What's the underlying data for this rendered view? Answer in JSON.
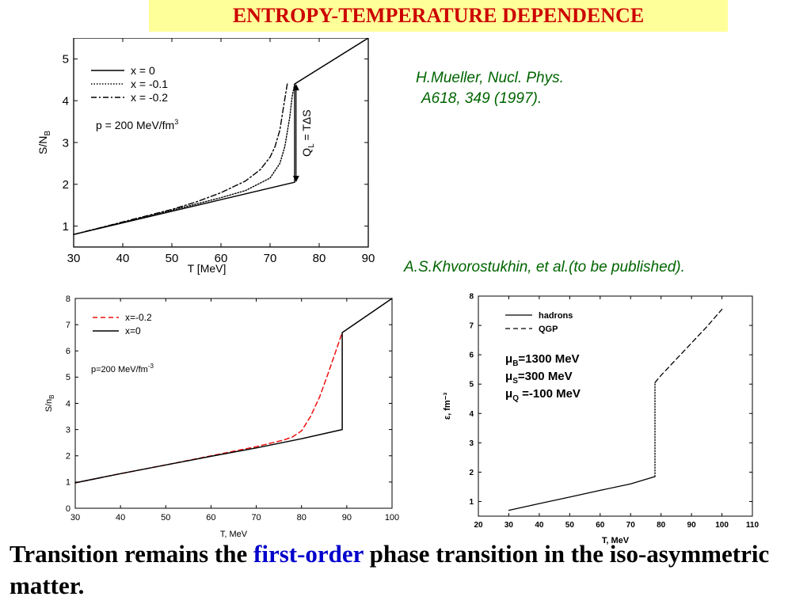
{
  "title": "ENTROPY-TEMPERATURE DEPENDENCE",
  "references": {
    "mueller_line1": "H.Mueller, Nucl. Phys.",
    "mueller_line2": "A618, 349 (1997).",
    "khvorostukhin": "A.S.Khvorostukhin, et al.(to be published)."
  },
  "conclusion": {
    "part1": "Transition remains the ",
    "highlight": "first-order",
    "part2": " phase transition in the iso-asymmetric matter."
  },
  "colors": {
    "title_bg": "#ffff99",
    "title_text": "#cc0000",
    "reference": "#006400",
    "highlight": "#0000cc",
    "red_series": "#ee1111"
  },
  "chart_data": [
    {
      "id": "mueller",
      "type": "line",
      "xlabel": "T  [MeV]",
      "ylabel": "S/N_B",
      "xlim": [
        30,
        90
      ],
      "ylim": [
        0.5,
        5.5
      ],
      "xticks": [
        30,
        40,
        50,
        60,
        70,
        80,
        90
      ],
      "yticks": [
        1,
        2,
        3,
        4,
        5
      ],
      "legend_position": "top-left",
      "annotations": [
        "p = 200 MeV/fm³",
        "Q_L = TΔS"
      ],
      "series": [
        {
          "name": "x = 0",
          "style": "solid",
          "x": [
            30,
            75,
            75,
            90
          ],
          "y": [
            0.8,
            2.05,
            4.4,
            5.5
          ]
        },
        {
          "name": "x = -0.1",
          "style": "dotted",
          "x": [
            30,
            50,
            60,
            65,
            70,
            72,
            73,
            74,
            74.5,
            75,
            90
          ],
          "y": [
            0.8,
            1.38,
            1.68,
            1.85,
            2.15,
            2.5,
            2.9,
            3.6,
            4.1,
            4.4,
            5.5
          ]
        },
        {
          "name": "x = -0.2",
          "style": "dashdot",
          "x": [
            30,
            40,
            50,
            55,
            60,
            65,
            68,
            70,
            71,
            72,
            72.8,
            73.5
          ],
          "y": [
            0.8,
            1.1,
            1.4,
            1.58,
            1.8,
            2.08,
            2.35,
            2.65,
            2.9,
            3.3,
            3.9,
            4.4
          ]
        }
      ]
    },
    {
      "id": "khvorostukhin-entropy",
      "type": "line",
      "xlabel": "T, MeV",
      "ylabel": "S/n_B",
      "xlim": [
        30,
        100
      ],
      "ylim": [
        0,
        8
      ],
      "xticks": [
        30,
        40,
        50,
        60,
        70,
        80,
        90,
        100
      ],
      "yticks": [
        0,
        1,
        2,
        3,
        4,
        5,
        6,
        7,
        8
      ],
      "legend_position": "top-left",
      "annotations": [
        "p=200 MeV/fm⁻³"
      ],
      "series": [
        {
          "name": "x=-0.2",
          "style": "dashed",
          "color": "#ee1111",
          "x": [
            30,
            40,
            50,
            60,
            70,
            76,
            78,
            80,
            82,
            84,
            86,
            88,
            89
          ],
          "y": [
            0.97,
            1.32,
            1.65,
            2.0,
            2.35,
            2.6,
            2.72,
            2.95,
            3.5,
            4.25,
            5.2,
            6.2,
            6.7
          ]
        },
        {
          "name": "x=0",
          "style": "solid",
          "color": "#000000",
          "x": [
            30,
            40,
            50,
            60,
            70,
            80,
            89,
            89,
            100
          ],
          "y": [
            0.97,
            1.32,
            1.65,
            1.98,
            2.3,
            2.65,
            3.0,
            6.7,
            8.0
          ]
        }
      ]
    },
    {
      "id": "khvorostukhin-density",
      "type": "line",
      "xlabel": "T, MeV",
      "ylabel": "ε, fm⁻³",
      "xlim": [
        20,
        110
      ],
      "ylim": [
        0.5,
        8
      ],
      "xticks": [
        20,
        30,
        40,
        50,
        60,
        70,
        80,
        90,
        100,
        110
      ],
      "yticks": [
        1,
        2,
        3,
        4,
        5,
        6,
        7,
        8
      ],
      "legend_position": "top-left",
      "annotations": [
        "μB=1300 MeV",
        "μS=300 MeV",
        "μQ =-100 MeV"
      ],
      "series": [
        {
          "name": "hadrons",
          "style": "solid",
          "x": [
            30,
            40,
            50,
            60,
            70,
            78
          ],
          "y": [
            0.7,
            0.93,
            1.15,
            1.38,
            1.6,
            1.85
          ]
        },
        {
          "name": "QGP",
          "style": "dashed",
          "x": [
            78,
            80,
            85,
            90,
            95,
            100
          ],
          "y": [
            5.05,
            5.3,
            5.85,
            6.4,
            6.95,
            7.55
          ]
        },
        {
          "name": "",
          "style": "dotted",
          "x": [
            78,
            78
          ],
          "y": [
            1.85,
            5.05
          ]
        }
      ]
    }
  ]
}
